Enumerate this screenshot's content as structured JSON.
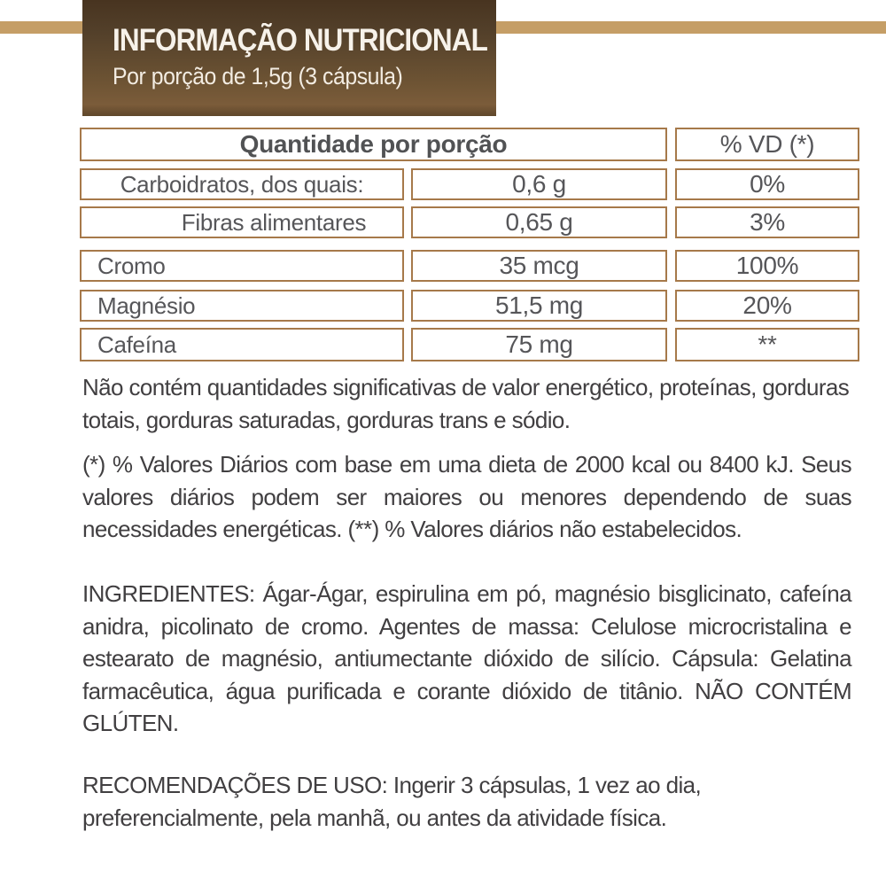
{
  "colors": {
    "stripe_tan": "#c59e66",
    "table_border": "#a6794a",
    "banner_brown_dark": "#483420",
    "banner_brown_light": "#7b5c3a",
    "text_gray": "#565659",
    "body_text": "#413f41"
  },
  "banner": {
    "title": "INFORMAÇÃO NUTRICIONAL",
    "subtitle": "Por porção de 1,5g (3 cápsula)"
  },
  "table": {
    "header": {
      "quantity": "Quantidade por porção",
      "vd": "% VD (*)"
    },
    "rows": [
      {
        "name": "Carboidratos, dos quais:",
        "value": "0,6 g",
        "vd": "0%"
      },
      {
        "name": "Fibras alimentares",
        "value": "0,65 g",
        "vd": "3%"
      },
      {
        "name": "Cromo",
        "value": "35 mcg",
        "vd": "100%"
      },
      {
        "name": "Magnésio",
        "value": "51,5 mg",
        "vd": "20%"
      },
      {
        "name": "Cafeína",
        "value": "75 mg",
        "vd": "**"
      }
    ]
  },
  "paragraphs": {
    "no_significant": "Não contém quantidades significativas de valor energético, proteínas, gorduras totais, gorduras saturadas, gorduras trans e sódio.",
    "daily_values_note": "(*) % Valores Diários com base em uma dieta de 2000 kcal ou 8400 kJ. Seus valores diários podem ser maiores ou menores dependendo de suas necessidades energéticas. (**) % Valores diários não estabelecidos.",
    "ingredients": "INGREDIENTES: Ágar-Ágar, espirulina em pó, magnésio bisglicinato, cafeína anidra, picolinato de cromo. Agentes de massa: Celulose microcristalina e estearato de magnésio, antiumectante dióxido de silício. Cápsula: Gelatina farmacêutica, água purificada e corante dióxido de titânio. NÃO CONTÉM GLÚTEN.",
    "usage": "RECOMENDAÇÕES DE USO: Ingerir 3 cápsulas, 1 vez ao dia, preferencialmente, pela manhã, ou antes da atividade física."
  }
}
